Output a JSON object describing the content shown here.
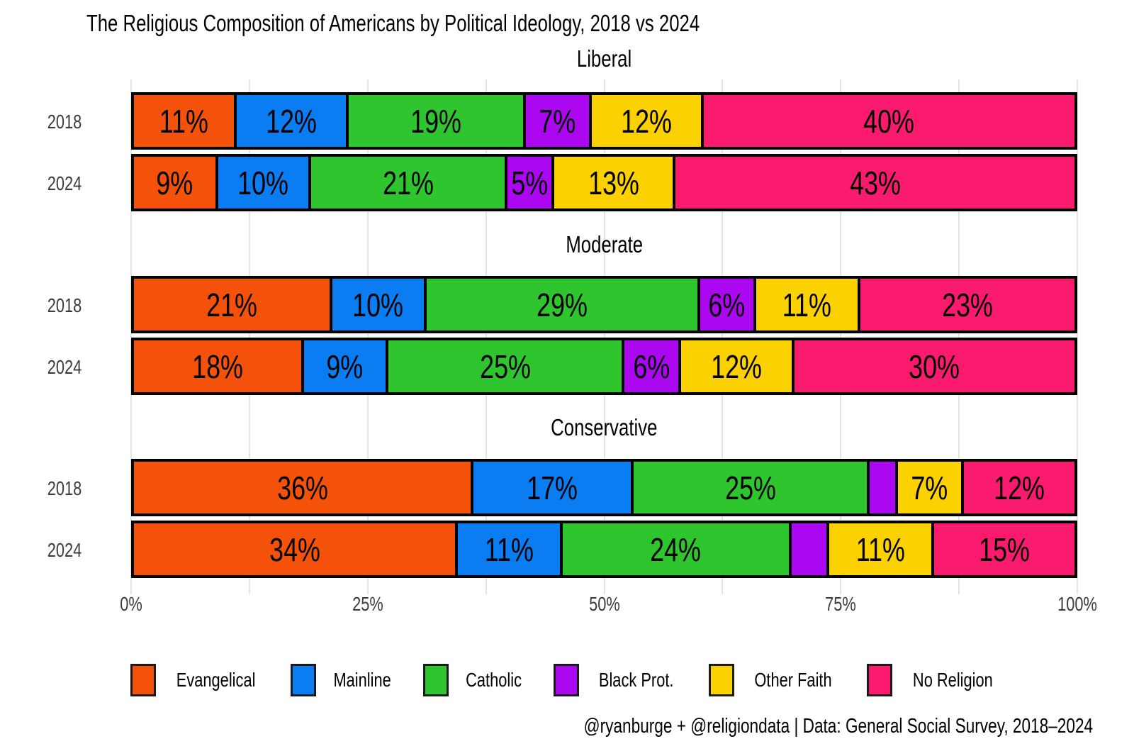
{
  "title": "The Religious Composition of Americans by Political Ideology, 2018 vs 2024",
  "footer": "@ryanburge + @religiondata | Data: General Social Survey, 2018–2024",
  "axis": {
    "ticks": [
      "0%",
      "25%",
      "50%",
      "75%",
      "100%"
    ]
  },
  "legend": [
    {
      "label": "Evangelical",
      "color": "#F4520B"
    },
    {
      "label": "Mainline",
      "color": "#0A7DF2"
    },
    {
      "label": "Catholic",
      "color": "#2EC52E"
    },
    {
      "label": "Black Prot.",
      "color": "#AB07F0"
    },
    {
      "label": "Other Faith",
      "color": "#FBD200"
    },
    {
      "label": "No Religion",
      "color": "#FA1A6E"
    }
  ],
  "chart_data": {
    "type": "bar",
    "variant": "horizontal-stacked-percent",
    "series_names": [
      "Evangelical",
      "Mainline",
      "Catholic",
      "Black Prot.",
      "Other Faith",
      "No Religion"
    ],
    "colors": [
      "#F4520B",
      "#0A7DF2",
      "#2EC52E",
      "#AB07F0",
      "#FBD200",
      "#FA1A6E"
    ],
    "xlabel": "",
    "ylabel": "",
    "xlim": [
      0,
      100
    ],
    "gridline_step_pct": 12.5,
    "label_min_show": 5,
    "panels": [
      {
        "title": "Liberal",
        "rows": [
          {
            "year": "2018",
            "values": [
              11,
              12,
              19,
              7,
              12,
              40
            ]
          },
          {
            "year": "2024",
            "values": [
              9,
              10,
              21,
              5,
              13,
              43
            ]
          }
        ]
      },
      {
        "title": "Moderate",
        "rows": [
          {
            "year": "2018",
            "values": [
              21,
              10,
              29,
              6,
              11,
              23
            ]
          },
          {
            "year": "2024",
            "values": [
              18,
              9,
              25,
              6,
              12,
              30
            ]
          }
        ]
      },
      {
        "title": "Conservative",
        "rows": [
          {
            "year": "2018",
            "values": [
              36,
              17,
              25,
              3,
              7,
              12
            ]
          },
          {
            "year": "2024",
            "values": [
              34,
              11,
              24,
              4,
              11,
              15
            ]
          }
        ]
      }
    ],
    "legend_position": "bottom",
    "grid": true
  }
}
